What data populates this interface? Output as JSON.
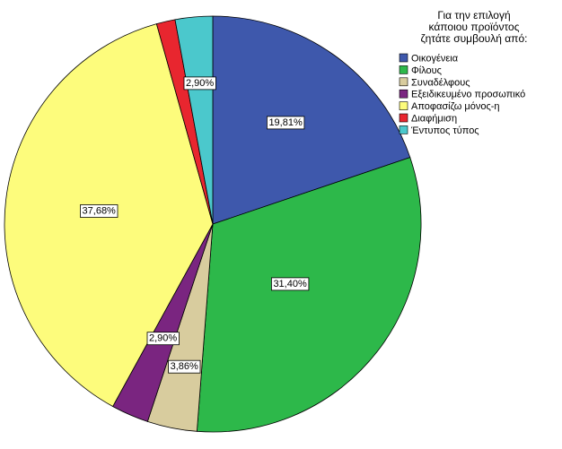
{
  "chart_data": {
    "type": "pie",
    "title": "",
    "legend_title": [
      "Για την επιλογή",
      "κάποιου προϊόντος",
      "ζητάτε συμβουλή από:"
    ],
    "legend_position": "top-right",
    "start_angle_deg": 0,
    "direction": "clockwise",
    "slices": [
      {
        "name": "Οικογένεια",
        "value": 19.81,
        "label": "19,81%",
        "color": "#3e58ac"
      },
      {
        "name": "Φίλους",
        "value": 31.4,
        "label": "31,40%",
        "color": "#2db84a"
      },
      {
        "name": "Συναδέλφους",
        "value": 3.86,
        "label": "3,86%",
        "color": "#d8cc9e"
      },
      {
        "name": "Εξειδικευμένο προσωπικό",
        "value": 2.9,
        "label": "2,90%",
        "color": "#7a2580"
      },
      {
        "name": "Αποφασίζω μόνος-η",
        "value": 37.68,
        "label": "37,68%",
        "color": "#fdfc7c"
      },
      {
        "name": "Διαφήμιση",
        "value": 1.45,
        "label": "",
        "color": "#e8262f"
      },
      {
        "name": "Έντυπος τύπος",
        "value": 2.9,
        "label": "2,90%",
        "color": "#4bc8cc"
      }
    ]
  }
}
